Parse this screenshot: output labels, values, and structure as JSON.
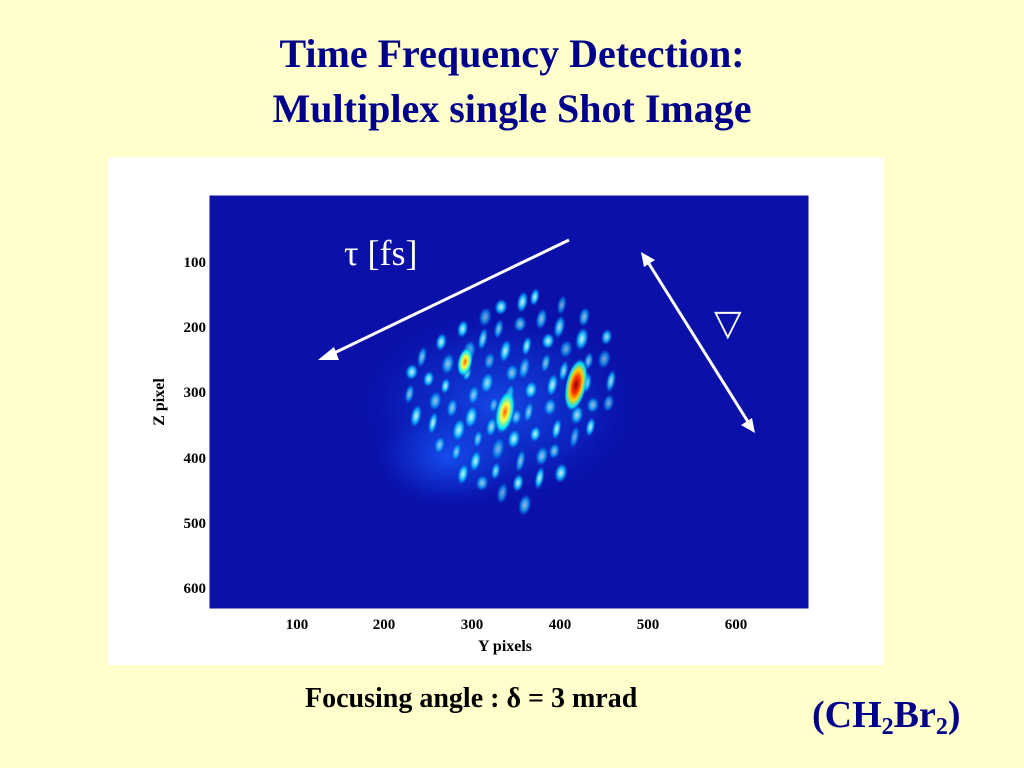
{
  "slide": {
    "title_line1": "Time Frequency Detection:",
    "title_line2": "Multiplex single Shot  Image",
    "caption": "Focusing angle :  δ =  3 mrad",
    "molecule": {
      "open": "(CH",
      "sub1": "2",
      "mid": "Br",
      "sub2": "2",
      "close": ")"
    }
  },
  "plot": {
    "ylabel": "Z pixel",
    "xlabel": "Y pixels",
    "x_ticks": [
      "100",
      "200",
      "300",
      "400",
      "500",
      "600"
    ],
    "y_ticks": [
      "100",
      "200",
      "300",
      "400",
      "500",
      "600"
    ],
    "annotation_tau": "τ [fs]",
    "annotation_delta": "▽",
    "colors": {
      "background": "#ffffcc",
      "title": "#00008b",
      "plot_field": "#0a10a8"
    }
  }
}
